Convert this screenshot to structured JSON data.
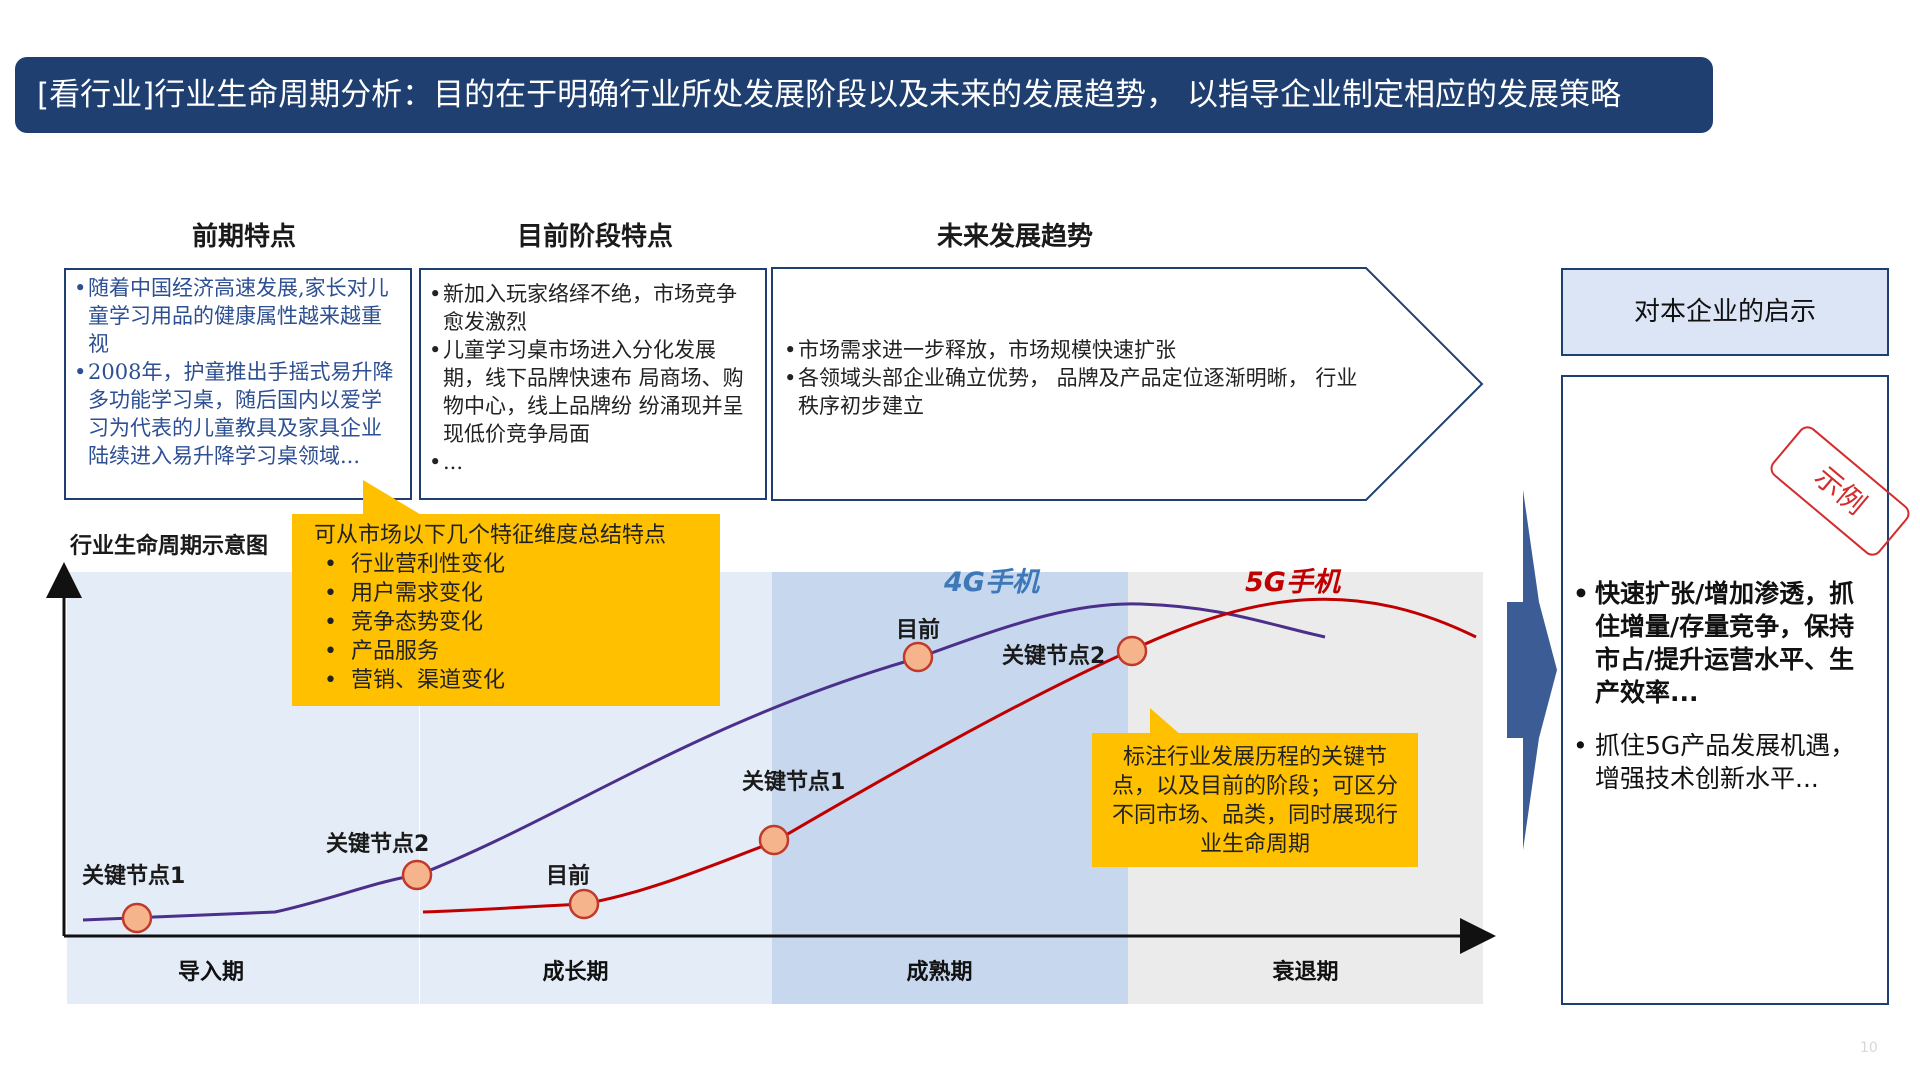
{
  "title": "[看行业]行业生命周期分析：目的在于明确行业所处发展阶段以及未来的发展趋势，  以指导企业制定相应的发展策略",
  "columns": [
    {
      "heading": "前期特点",
      "items": [
        "随着中国经济高速发展,家长对儿童学习用品的健康属性越来越重视",
        "2008年，护童推出手摇式易升降多功能学习桌，随后国内以爱学习为代表的儿童教具及家具企业陆续进入易升降学习桌领域..."
      ]
    },
    {
      "heading": "目前阶段特点",
      "items": [
        "新加入玩家络绎不绝，市场竞争愈发激烈",
        "儿童学习桌市场进入分化发展期，线下品牌快速布 局商场、购物中心，线上品牌纷 纷涌现并呈现低价竞争局面",
        "..."
      ]
    },
    {
      "heading": "未来发展趋势",
      "items": [
        "市场需求进一步释放，市场规模快速扩张",
        "各领域头部企业确立优势， 品牌及产品定位逐渐明晰， 行业秩序初步建立"
      ]
    }
  ],
  "chart": {
    "title": "行业生命周期示意图",
    "phases": [
      "导入期",
      "成长期",
      "成熟期",
      "衰退期"
    ],
    "series_labels": {
      "4g": "4G手机",
      "5g": "5G手机"
    },
    "nodes_4g": {
      "node1": "关键节点1",
      "node2": "关键节点2",
      "current": "目前"
    },
    "nodes_5g": {
      "current": "目前",
      "node1": "关键节点1",
      "node2": "关键节点2"
    },
    "colors": {
      "series_4g": "#4b2f8a",
      "series_5g": "#c00000",
      "marker_fill": "#f6b48c",
      "marker_stroke": "#c0392b",
      "label_4g": "#3d78b8",
      "label_5g": "#c00000"
    }
  },
  "callouts": {
    "top": {
      "intro": "可从市场以下几个特征维度总结特点",
      "items": [
        "行业营利性变化",
        "用户需求变化",
        "竞争态势变化",
        "产品服务",
        "营销、渠道变化"
      ]
    },
    "bottom": "标注行业发展历程的关键节点，以及目前的阶段；可区分不同市场、品类，同时展现行业生命周期"
  },
  "right_panel": {
    "heading": "对本企业的启示",
    "items": [
      "快速扩张/增加渗透，抓住增量/存量竞争，保持市占/提升运营水平、生产效率...",
      "抓住5G产品发展机遇，增强技术创新水平..."
    ],
    "stamp": "示例"
  },
  "page_number": "10"
}
